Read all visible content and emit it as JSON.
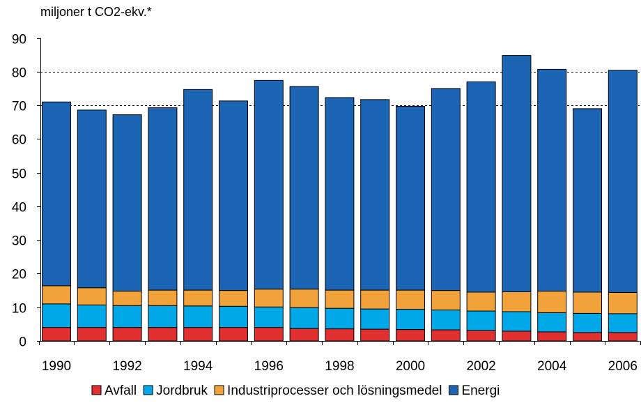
{
  "chart_data": {
    "type": "bar",
    "stacked": true,
    "ylabel": "miljoner t CO2-ekv.*",
    "ylim": [
      0,
      90
    ],
    "yticks": [
      0,
      10,
      20,
      30,
      40,
      50,
      60,
      70,
      80,
      90
    ],
    "gridlines": [
      70,
      80
    ],
    "categories": [
      "1990",
      "1991",
      "1992",
      "1993",
      "1994",
      "1995",
      "1996",
      "1997",
      "1998",
      "1999",
      "2000",
      "2001",
      "2002",
      "2003",
      "2004",
      "2005",
      "2006"
    ],
    "x_tick_labels": [
      "1990",
      "",
      "1992",
      "",
      "1994",
      "",
      "1996",
      "",
      "1998",
      "",
      "2000",
      "",
      "2002",
      "",
      "2004",
      "",
      "2006"
    ],
    "legend_position": "bottom",
    "series": [
      {
        "name": "Avfall",
        "color": "#e03030",
        "values": [
          4,
          4,
          4,
          4,
          4,
          4,
          4,
          3.7,
          3.6,
          3.5,
          3.4,
          3.3,
          3.1,
          2.9,
          2.7,
          2.5,
          2.5
        ]
      },
      {
        "name": "Jordbruk",
        "color": "#00a8e8",
        "values": [
          7,
          6.7,
          6.5,
          6.5,
          6.4,
          6.3,
          6.1,
          6.2,
          6.1,
          6,
          6,
          5.9,
          5.8,
          5.8,
          5.7,
          5.7,
          5.6
        ]
      },
      {
        "name": "Industriprocesser och lösningsmedel",
        "color": "#f2a23a",
        "values": [
          5.4,
          5.1,
          4.3,
          4.6,
          4.7,
          4.7,
          5.3,
          5.5,
          5.4,
          5.6,
          5.7,
          5.8,
          5.6,
          5.9,
          6.4,
          6.3,
          6.3
        ]
      },
      {
        "name": "Energi",
        "color": "#1c64b4",
        "values": [
          54.6,
          52.8,
          52.4,
          54.2,
          59.6,
          56.3,
          62,
          60.2,
          57.2,
          56.6,
          54.6,
          60,
          62.5,
          70.2,
          65.9,
          54.5,
          66
        ]
      }
    ]
  }
}
